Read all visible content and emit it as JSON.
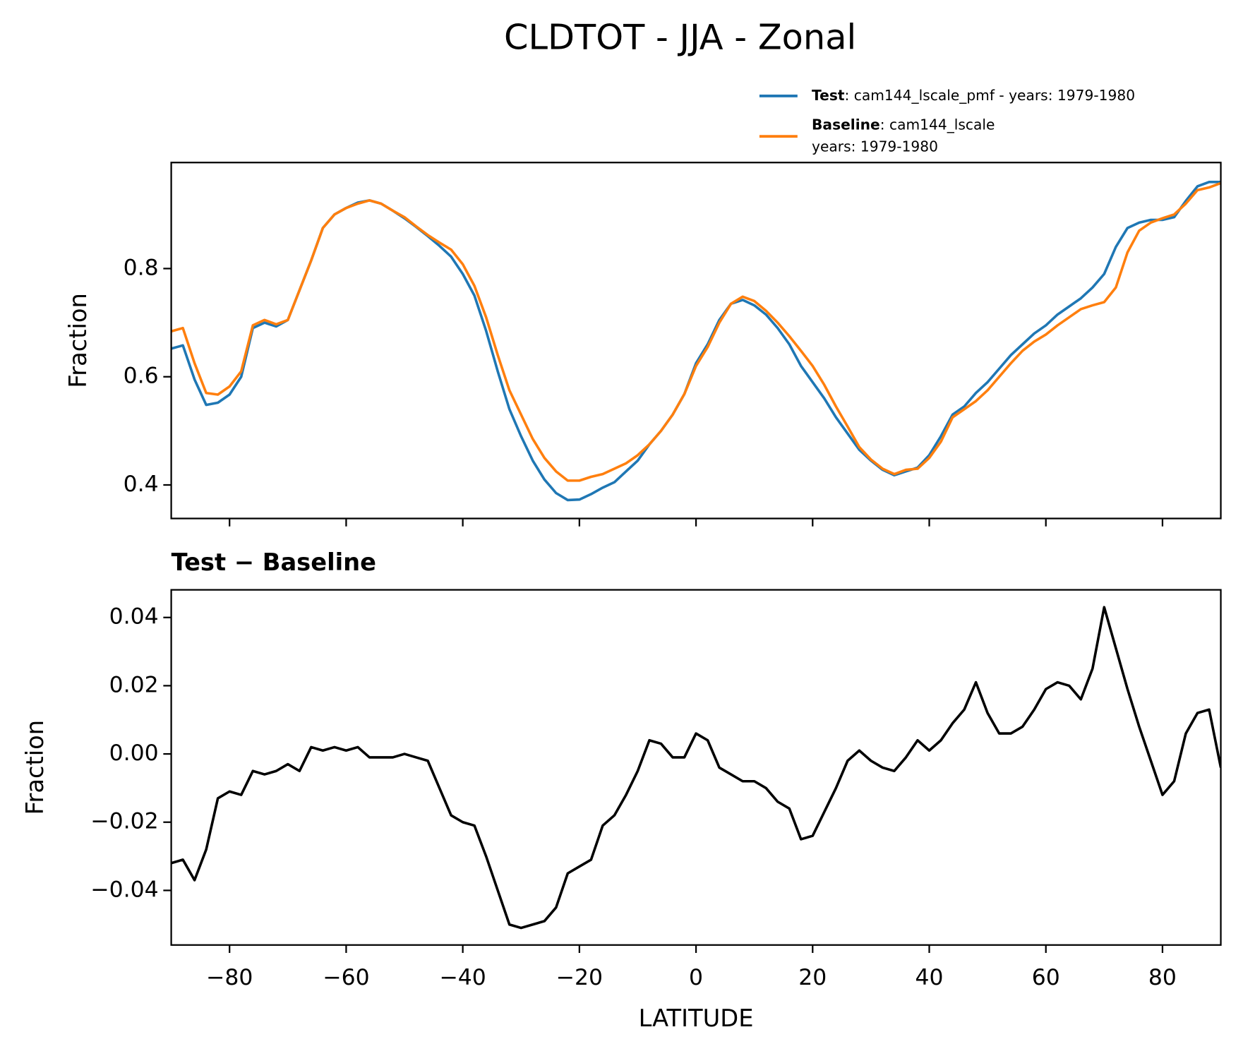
{
  "chart_data": [
    {
      "type": "line",
      "title": "CLDTOT - JJA - Zonal",
      "ylabel": "Fraction",
      "x": [
        -90,
        -88,
        -86,
        -84,
        -82,
        -80,
        -78,
        -76,
        -74,
        -72,
        -70,
        -68,
        -66,
        -64,
        -62,
        -60,
        -58,
        -56,
        -54,
        -52,
        -50,
        -48,
        -46,
        -44,
        -42,
        -40,
        -38,
        -36,
        -34,
        -32,
        -30,
        -28,
        -26,
        -24,
        -22,
        -20,
        -18,
        -16,
        -14,
        -12,
        -10,
        -8,
        -6,
        -4,
        -2,
        0,
        2,
        4,
        6,
        8,
        10,
        12,
        14,
        16,
        18,
        20,
        22,
        24,
        26,
        28,
        30,
        32,
        34,
        36,
        38,
        40,
        42,
        44,
        46,
        48,
        50,
        52,
        54,
        56,
        58,
        60,
        62,
        64,
        66,
        68,
        70,
        72,
        74,
        76,
        78,
        80,
        82,
        84,
        86,
        88,
        90
      ],
      "series": [
        {
          "name": "Test",
          "description": ": cam144_lscale_pmf - years: 1979-1980",
          "color": "#1f77b4",
          "values": [
            0.652,
            0.658,
            0.595,
            0.548,
            0.552,
            0.567,
            0.6,
            0.69,
            0.7,
            0.693,
            0.705,
            0.76,
            0.815,
            0.875,
            0.9,
            0.912,
            0.922,
            0.926,
            0.92,
            0.907,
            0.893,
            0.877,
            0.86,
            0.842,
            0.822,
            0.79,
            0.75,
            0.685,
            0.61,
            0.54,
            0.49,
            0.445,
            0.41,
            0.385,
            0.372,
            0.373,
            0.383,
            0.395,
            0.405,
            0.425,
            0.445,
            0.475,
            0.5,
            0.53,
            0.568,
            0.625,
            0.66,
            0.705,
            0.735,
            0.742,
            0.732,
            0.715,
            0.69,
            0.66,
            0.62,
            0.59,
            0.56,
            0.525,
            0.495,
            0.465,
            0.445,
            0.428,
            0.418,
            0.425,
            0.432,
            0.455,
            0.49,
            0.53,
            0.545,
            0.57,
            0.59,
            0.615,
            0.64,
            0.66,
            0.68,
            0.695,
            0.715,
            0.73,
            0.745,
            0.765,
            0.79,
            0.84,
            0.875,
            0.885,
            0.89,
            0.89,
            0.895,
            0.925,
            0.952,
            0.96,
            0.96
          ]
        },
        {
          "name": "Baseline",
          "description": [
            ": cam144_lscale",
            "years: 1979-1980"
          ],
          "color": "#ff7f0e",
          "values": [
            0.684,
            0.69,
            0.625,
            0.57,
            0.567,
            0.582,
            0.61,
            0.695,
            0.705,
            0.697,
            0.705,
            0.76,
            0.815,
            0.875,
            0.9,
            0.912,
            0.92,
            0.926,
            0.92,
            0.907,
            0.895,
            0.878,
            0.862,
            0.848,
            0.835,
            0.808,
            0.768,
            0.71,
            0.64,
            0.575,
            0.53,
            0.485,
            0.45,
            0.425,
            0.408,
            0.408,
            0.415,
            0.42,
            0.43,
            0.44,
            0.455,
            0.475,
            0.5,
            0.53,
            0.568,
            0.62,
            0.655,
            0.7,
            0.735,
            0.748,
            0.74,
            0.722,
            0.7,
            0.675,
            0.648,
            0.62,
            0.585,
            0.545,
            0.508,
            0.47,
            0.447,
            0.43,
            0.42,
            0.428,
            0.43,
            0.45,
            0.48,
            0.525,
            0.54,
            0.555,
            0.575,
            0.6,
            0.625,
            0.648,
            0.665,
            0.678,
            0.695,
            0.71,
            0.725,
            0.732,
            0.738,
            0.765,
            0.83,
            0.87,
            0.885,
            0.893,
            0.9,
            0.92,
            0.945,
            0.95,
            0.958
          ]
        }
      ],
      "xlim": [
        -90,
        90
      ],
      "xticks": [
        -80,
        -60,
        -40,
        -20,
        0,
        20,
        40,
        60,
        80
      ],
      "ylim": [
        0.338,
        0.996
      ],
      "yticks": [
        0.4,
        0.6,
        0.8
      ],
      "legend": "upper right"
    },
    {
      "type": "line",
      "title": "Test − Baseline",
      "ylabel": "Fraction",
      "xlabel": "LATITUDE",
      "x": [
        -90,
        -88,
        -86,
        -84,
        -82,
        -80,
        -78,
        -76,
        -74,
        -72,
        -70,
        -68,
        -66,
        -64,
        -62,
        -60,
        -58,
        -56,
        -54,
        -52,
        -50,
        -48,
        -46,
        -44,
        -42,
        -40,
        -38,
        -36,
        -34,
        -32,
        -30,
        -28,
        -26,
        -24,
        -22,
        -20,
        -18,
        -16,
        -14,
        -12,
        -10,
        -8,
        -6,
        -4,
        -2,
        0,
        2,
        4,
        6,
        8,
        10,
        12,
        14,
        16,
        18,
        20,
        22,
        24,
        26,
        28,
        30,
        32,
        34,
        36,
        38,
        40,
        42,
        44,
        46,
        48,
        50,
        52,
        54,
        56,
        58,
        60,
        62,
        64,
        66,
        68,
        70,
        72,
        74,
        76,
        78,
        80,
        82,
        84,
        86,
        88,
        90
      ],
      "series": [
        {
          "color": "#000000",
          "values": [
            -0.032,
            -0.031,
            -0.037,
            -0.028,
            -0.013,
            -0.011,
            -0.012,
            -0.005,
            -0.006,
            -0.005,
            -0.003,
            -0.005,
            0.002,
            0.001,
            0.002,
            0.001,
            0.002,
            -0.001,
            -0.001,
            -0.001,
            0,
            -0.001,
            -0.002,
            -0.01,
            -0.018,
            -0.02,
            -0.021,
            -0.03,
            -0.04,
            -0.05,
            -0.051,
            -0.05,
            -0.049,
            -0.045,
            -0.035,
            -0.033,
            -0.031,
            -0.021,
            -0.018,
            -0.012,
            -0.005,
            0.004,
            0.003,
            -0.001,
            -0.001,
            0.006,
            0.004,
            -0.004,
            -0.006,
            -0.008,
            -0.008,
            -0.01,
            -0.014,
            -0.016,
            -0.025,
            -0.024,
            -0.017,
            -0.01,
            -0.002,
            0.001,
            -0.002,
            -0.004,
            -0.005,
            -0.001,
            0.004,
            0.001,
            0.004,
            0.009,
            0.013,
            0.021,
            0.012,
            0.006,
            0.006,
            0.008,
            0.013,
            0.019,
            0.021,
            0.02,
            0.016,
            0.025,
            0.043,
            0.031,
            0.019,
            0.008,
            -0.002,
            -0.012,
            -0.008,
            0.006,
            0.012,
            0.013,
            -0.004
          ]
        }
      ],
      "xlim": [
        -90,
        90
      ],
      "xticks": [
        {
          "value": -80,
          "label": "−80"
        },
        {
          "value": -60,
          "label": "−60"
        },
        {
          "value": -40,
          "label": "−40"
        },
        {
          "value": -20,
          "label": "−20"
        },
        0,
        20,
        40,
        60,
        80
      ],
      "ylim": [
        -0.056,
        0.0481
      ],
      "yticks": [
        {
          "value": -0.04,
          "label": "−0.04"
        },
        {
          "value": -0.02,
          "label": "−0.02"
        },
        {
          "value": 0,
          "label": "0.00"
        },
        {
          "value": 0.02,
          "label": "0.02"
        },
        {
          "value": 0.04,
          "label": "0.04"
        }
      ]
    }
  ]
}
